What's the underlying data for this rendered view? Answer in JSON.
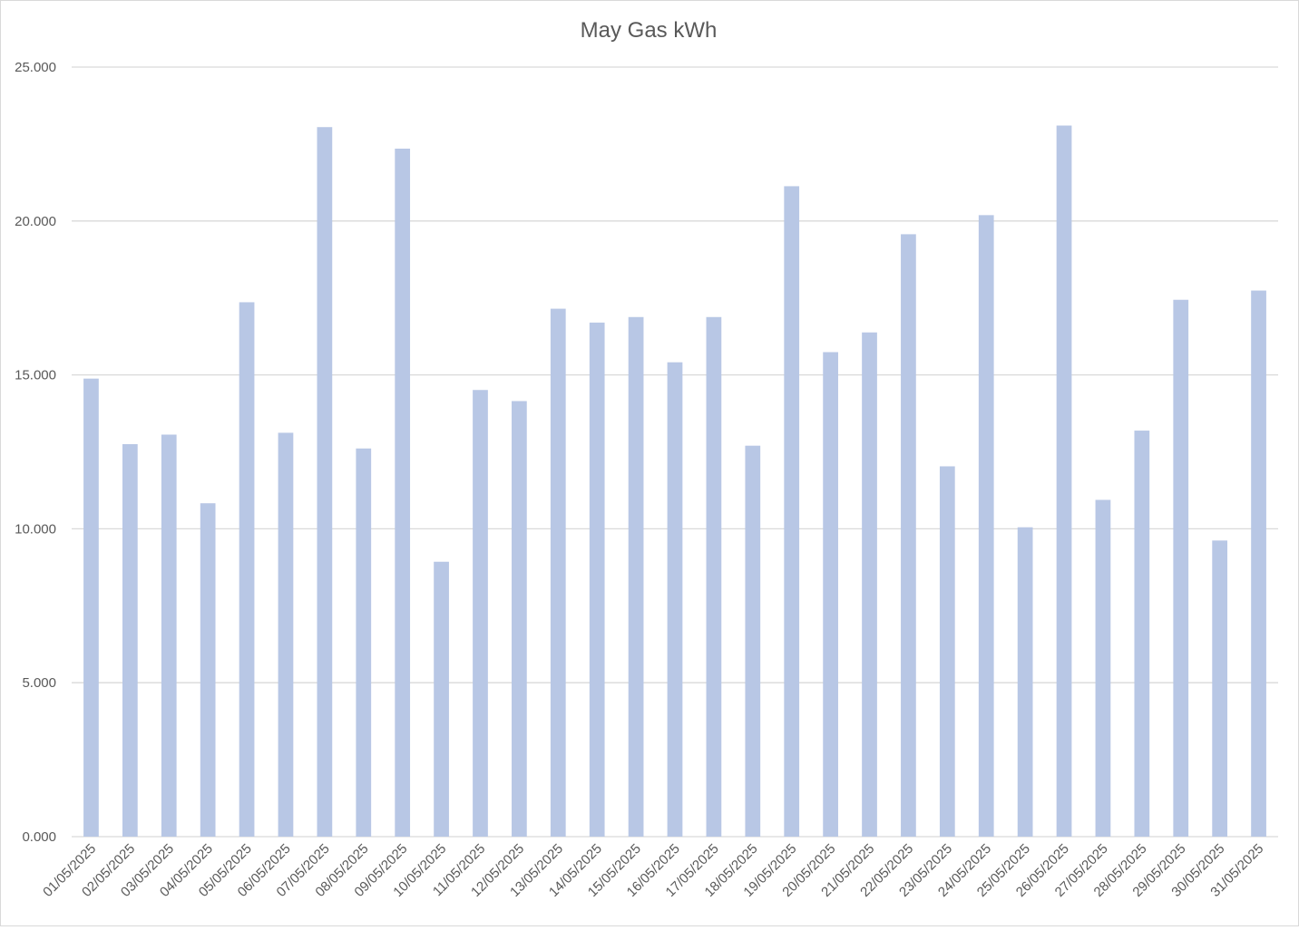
{
  "chart_data": {
    "type": "bar",
    "title": "May Gas kWh",
    "xlabel": "",
    "ylabel": "",
    "ylim": [
      0,
      25
    ],
    "yticks": [
      "0.000",
      "5.000",
      "10.000",
      "15.000",
      "20.000",
      "25.000"
    ],
    "grid": true,
    "legend": "none",
    "bar_color": "#b8c7e5",
    "categories": [
      "01/05/2025",
      "02/05/2025",
      "03/05/2025",
      "04/05/2025",
      "05/05/2025",
      "06/05/2025",
      "07/05/2025",
      "08/05/2025",
      "09/05/2025",
      "10/05/2025",
      "11/05/2025",
      "12/05/2025",
      "13/05/2025",
      "14/05/2025",
      "15/05/2025",
      "16/05/2025",
      "17/05/2025",
      "18/05/2025",
      "19/05/2025",
      "20/05/2025",
      "21/05/2025",
      "22/05/2025",
      "23/05/2025",
      "24/05/2025",
      "25/05/2025",
      "26/05/2025",
      "27/05/2025",
      "28/05/2025",
      "29/05/2025",
      "30/05/2025",
      "31/05/2025"
    ],
    "values": [
      14.88,
      12.75,
      13.06,
      10.83,
      17.36,
      13.12,
      23.05,
      12.61,
      22.35,
      8.93,
      14.51,
      14.15,
      17.15,
      16.7,
      16.88,
      15.41,
      16.88,
      12.7,
      21.13,
      15.74,
      16.38,
      19.57,
      12.03,
      20.19,
      10.05,
      23.1,
      10.94,
      13.19,
      17.44,
      9.62,
      17.74
    ]
  }
}
